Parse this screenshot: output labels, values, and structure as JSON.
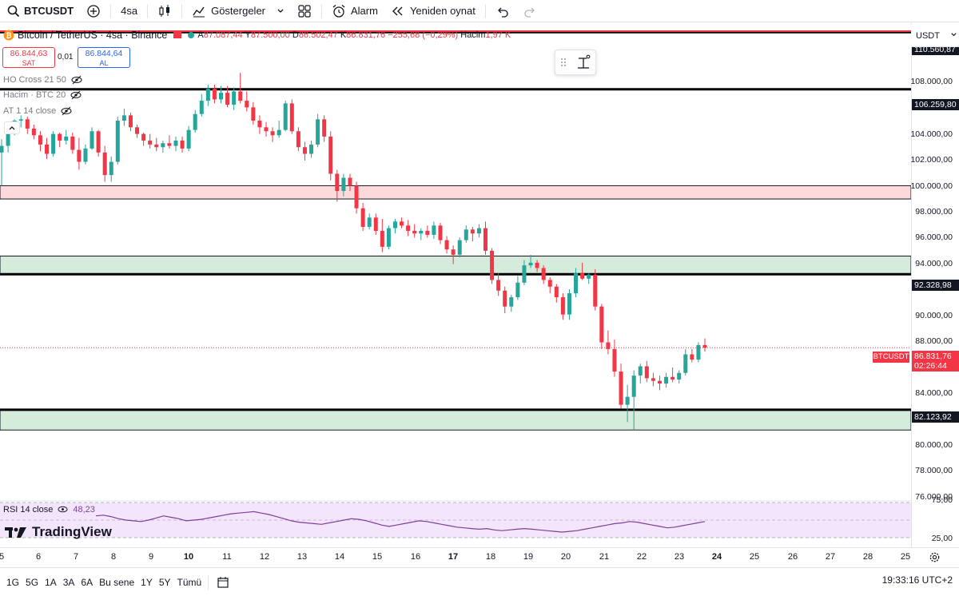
{
  "toolbar": {
    "symbol": "BTCUSDT",
    "interval": "4sa",
    "indicators_label": "Göstergeler",
    "alert_label": "Alarm",
    "replay_label": "Yeniden oynat"
  },
  "legend": {
    "title": "Bitcoin / TetherUS · 4sa · Binance",
    "open_k": "A",
    "open": "87.087,44",
    "high_k": "Y",
    "high": "87.500,00",
    "low_k": "D",
    "low": "86.502,47",
    "close_k": "K",
    "close": "86.831,76",
    "change": "−255,68 (−0,29%)",
    "volume_k": "Hacim",
    "volume": "1,97 K"
  },
  "trade": {
    "sell_price": "86.844,63",
    "sell_label": "SAT",
    "spread": "0,01",
    "buy_price": "86.844,64",
    "buy_label": "AL"
  },
  "indicators": [
    {
      "label": "HO Cross 21 50"
    },
    {
      "label": "Hacim · BTC 20"
    },
    {
      "label": "AT 1 14 close"
    }
  ],
  "price_axis": {
    "currency": "USDT",
    "ticks": [
      "108.000,00",
      "104.000,00",
      "102.000,00",
      "100.000,00",
      "98.000,00",
      "96.000,00",
      "94.000,00",
      "90.000,00",
      "88.000,00",
      "84.000,00",
      "80.000,00",
      "78.000,00",
      "76.000,00"
    ],
    "levels": [
      "110.560,87",
      "106.259,80",
      "92.328,98",
      "82.123,92"
    ],
    "current_symbol": "BTCUSDT",
    "current_price": "86.831,76",
    "countdown": "02:26:44"
  },
  "rsi": {
    "label": "RSI 14 close",
    "value": "48,23",
    "tick_top": "75,00",
    "tick_bottom": "25,00"
  },
  "brand": "TradingView",
  "time_axis": [
    "5",
    "6",
    "7",
    "8",
    "9",
    "10",
    "11",
    "12",
    "13",
    "14",
    "15",
    "16",
    "17",
    "18",
    "19",
    "20",
    "21",
    "22",
    "23",
    "24",
    "25",
    "26",
    "27",
    "28",
    "25"
  ],
  "range_buttons": [
    "1G",
    "5G",
    "1A",
    "3A",
    "6A",
    "Bu sene",
    "1Y",
    "5Y",
    "Tümü"
  ],
  "clock": "19:33:16 UTC+2",
  "colors": {
    "up": "#26a69a",
    "down": "#f23645",
    "resistance_zone": "#fcd9da",
    "support_zone": "#d5ecdc",
    "rsi_line": "#7e3f9a",
    "rsi_band": "#f3e5fb"
  },
  "chart_data": {
    "type": "candlestick",
    "y_axis_range": [
      75000,
      111500
    ],
    "horizontal_levels": [
      110560.87,
      106259.8,
      92328.98,
      82123.92
    ],
    "zones": [
      {
        "kind": "resistance",
        "from": 98000,
        "to": 99000
      },
      {
        "kind": "support",
        "from": 92328.98,
        "to": 93700
      },
      {
        "kind": "support",
        "from": 80600,
        "to": 82123.92
      }
    ],
    "candles": [
      [
        101500,
        102500,
        99000,
        102000
      ],
      [
        102000,
        103600,
        101500,
        103200
      ],
      [
        103200,
        104000,
        102800,
        103900
      ],
      [
        103900,
        104300,
        103400,
        104000
      ],
      [
        104000,
        104200,
        102900,
        103300
      ],
      [
        103300,
        103600,
        102500,
        102800
      ],
      [
        102800,
        103100,
        101600,
        102100
      ],
      [
        102100,
        102600,
        101000,
        101400
      ],
      [
        101400,
        103100,
        101200,
        102900
      ],
      [
        102900,
        103000,
        101900,
        102400
      ],
      [
        102400,
        103200,
        102100,
        102700
      ],
      [
        102700,
        103000,
        101400,
        101700
      ],
      [
        101700,
        102600,
        100200,
        100800
      ],
      [
        100800,
        102100,
        100600,
        101800
      ],
      [
        101800,
        103400,
        101700,
        103100
      ],
      [
        103100,
        103200,
        101200,
        101500
      ],
      [
        101500,
        102000,
        99300,
        99800
      ],
      [
        99800,
        101200,
        99300,
        100800
      ],
      [
        100800,
        104200,
        100600,
        103900
      ],
      [
        103900,
        104800,
        103500,
        104300
      ],
      [
        104300,
        104500,
        103100,
        103400
      ],
      [
        103400,
        103600,
        102600,
        102900
      ],
      [
        102900,
        103000,
        102000,
        102400
      ],
      [
        102400,
        102900,
        101800,
        102100
      ],
      [
        102100,
        102600,
        101600,
        101900
      ],
      [
        101900,
        102400,
        101500,
        102200
      ],
      [
        102200,
        102800,
        101800,
        102000
      ],
      [
        102000,
        102700,
        101600,
        102400
      ],
      [
        102400,
        102700,
        101500,
        101800
      ],
      [
        101800,
        103500,
        101600,
        103200
      ],
      [
        103200,
        104700,
        103000,
        104400
      ],
      [
        104400,
        105900,
        104200,
        105400
      ],
      [
        105400,
        106600,
        105000,
        106300
      ],
      [
        106300,
        106600,
        105200,
        105500
      ],
      [
        105500,
        106500,
        105200,
        106000
      ],
      [
        106000,
        106500,
        104900,
        105100
      ],
      [
        105100,
        106400,
        104700,
        106100
      ],
      [
        106100,
        107500,
        105200,
        105400
      ],
      [
        105400,
        106100,
        104600,
        104900
      ],
      [
        104900,
        105300,
        103600,
        103900
      ],
      [
        103900,
        104300,
        102900,
        103400
      ],
      [
        103400,
        103800,
        102700,
        103100
      ],
      [
        103100,
        103400,
        102300,
        102800
      ],
      [
        102800,
        103900,
        102600,
        103200
      ],
      [
        103200,
        105400,
        103100,
        105200
      ],
      [
        105200,
        105500,
        102900,
        103100
      ],
      [
        103100,
        103400,
        101600,
        101900
      ],
      [
        101900,
        102300,
        100900,
        101400
      ],
      [
        101400,
        102400,
        101100,
        102100
      ],
      [
        102100,
        104400,
        101900,
        104000
      ],
      [
        104000,
        104300,
        102300,
        102700
      ],
      [
        102700,
        103100,
        99400,
        99900
      ],
      [
        99900,
        100200,
        97800,
        98600
      ],
      [
        98600,
        99900,
        98200,
        99600
      ],
      [
        99600,
        99900,
        98600,
        99000
      ],
      [
        99000,
        99300,
        96900,
        97300
      ],
      [
        97300,
        97700,
        95600,
        95900
      ],
      [
        95900,
        96900,
        95700,
        96600
      ],
      [
        96600,
        96900,
        95300,
        95600
      ],
      [
        95600,
        96500,
        94000,
        94400
      ],
      [
        94400,
        96000,
        94200,
        95800
      ],
      [
        95800,
        96500,
        95400,
        96300
      ],
      [
        96300,
        96600,
        95800,
        96000
      ],
      [
        96000,
        96400,
        95200,
        95600
      ],
      [
        95600,
        96100,
        95100,
        95400
      ],
      [
        95400,
        95800,
        94900,
        95600
      ],
      [
        95600,
        96000,
        95100,
        95300
      ],
      [
        95300,
        96300,
        95000,
        96000
      ],
      [
        96000,
        96200,
        94600,
        94900
      ],
      [
        94900,
        95200,
        93900,
        94200
      ],
      [
        94200,
        94500,
        93100,
        93800
      ],
      [
        93800,
        95100,
        93600,
        94900
      ],
      [
        94900,
        96000,
        94700,
        95700
      ],
      [
        95700,
        95900,
        94800,
        95400
      ],
      [
        95400,
        96100,
        95100,
        95800
      ],
      [
        95800,
        96300,
        93800,
        94100
      ],
      [
        94100,
        94300,
        91600,
        91900
      ],
      [
        91900,
        92400,
        90700,
        91100
      ],
      [
        91100,
        91400,
        89400,
        89900
      ],
      [
        89900,
        90800,
        89500,
        90600
      ],
      [
        90600,
        92200,
        90400,
        91700
      ],
      [
        91700,
        93400,
        91500,
        93000
      ],
      [
        93000,
        93800,
        92800,
        93200
      ],
      [
        93200,
        93400,
        92500,
        92800
      ],
      [
        92800,
        93000,
        91600,
        91900
      ],
      [
        91900,
        92100,
        90900,
        91400
      ],
      [
        91400,
        91600,
        90200,
        90600
      ],
      [
        90600,
        90900,
        88900,
        89300
      ],
      [
        89300,
        91200,
        88900,
        90900
      ],
      [
        90900,
        92800,
        90600,
        92400
      ],
      [
        92400,
        93200,
        91900,
        92000
      ],
      [
        92000,
        92400,
        91600,
        92300
      ],
      [
        92300,
        92700,
        89600,
        89900
      ],
      [
        89900,
        90100,
        86700,
        87200
      ],
      [
        87200,
        88100,
        86300,
        86700
      ],
      [
        86700,
        87400,
        84600,
        85000
      ],
      [
        85000,
        85600,
        82200,
        82500
      ],
      [
        82500,
        84000,
        81200,
        83100
      ],
      [
        83100,
        85100,
        80600,
        84700
      ],
      [
        84700,
        85600,
        84100,
        85400
      ],
      [
        85400,
        85800,
        84200,
        84500
      ],
      [
        84500,
        84900,
        83900,
        84300
      ],
      [
        84300,
        84700,
        83600,
        84100
      ],
      [
        84100,
        84900,
        83800,
        84600
      ],
      [
        84600,
        85300,
        84200,
        84400
      ],
      [
        84400,
        85100,
        84100,
        84900
      ],
      [
        84900,
        86700,
        84700,
        86300
      ],
      [
        86300,
        86700,
        85700,
        85900
      ],
      [
        85900,
        87200,
        85700,
        87000
      ],
      [
        87000,
        87500,
        86500,
        86800
      ]
    ],
    "rsi_values": [
      56,
      57,
      55,
      52,
      50,
      49,
      48,
      50,
      53,
      56,
      54,
      52,
      49,
      50,
      51,
      53,
      55,
      57,
      59,
      60,
      61,
      62,
      60,
      58,
      55,
      52,
      49,
      47,
      46,
      45,
      44,
      46,
      48,
      50,
      52,
      51,
      49,
      46,
      43,
      41,
      43,
      45,
      47,
      49,
      48,
      46,
      44,
      42,
      40,
      39,
      38,
      37,
      38,
      36,
      35,
      36,
      37,
      38,
      37,
      36,
      35,
      34,
      33,
      34,
      35,
      37,
      39,
      41,
      43,
      45,
      46,
      48,
      47,
      45,
      43,
      41,
      39,
      40,
      42,
      44,
      46,
      48
    ],
    "time_labels": [
      "5",
      "6",
      "7",
      "8",
      "9",
      "10",
      "11",
      "12",
      "13",
      "14",
      "15",
      "16",
      "17",
      "18",
      "19",
      "20",
      "21",
      "22",
      "23",
      "24",
      "25",
      "26",
      "27",
      "28",
      "25"
    ]
  }
}
